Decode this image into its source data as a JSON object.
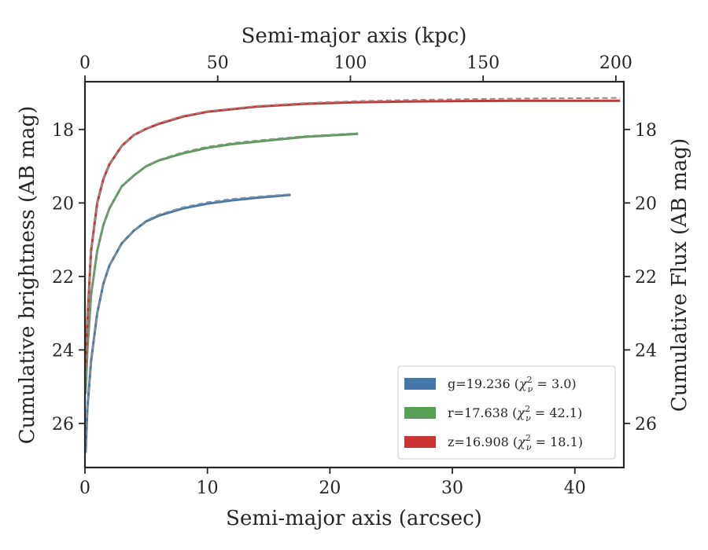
{
  "chart_data": {
    "type": "line",
    "xlabel_bottom": "Semi-major axis (arcsec)",
    "xlabel_top": "Semi-major axis (kpc)",
    "ylabel_left": "Cumulative brightness (AB mag)",
    "ylabel_right": "Cumulative Flux (AB mag)",
    "xlim": [
      0,
      44
    ],
    "ylim": [
      27.2,
      16.7
    ],
    "y_inverted": true,
    "top_xlim": [
      0,
      203
    ],
    "x_ticks": [
      0,
      10,
      20,
      30,
      40
    ],
    "x_tick_labels": [
      "0",
      "10",
      "20",
      "30",
      "40"
    ],
    "top_ticks": [
      0,
      50,
      100,
      150,
      200
    ],
    "top_tick_labels": [
      "0",
      "50",
      "100",
      "150",
      "200"
    ],
    "y_ticks": [
      18,
      20,
      22,
      24,
      26
    ],
    "y_tick_labels": [
      "18",
      "20",
      "22",
      "24",
      "26"
    ],
    "grid": false,
    "legend_position": "lower-right",
    "series": [
      {
        "name": "g=19.236 (χ²ᵥ = 3.0)",
        "legend_main": "g=19.236 (",
        "legend_chi_sup": "2",
        "legend_chi_sub": "ν",
        "legend_tail": " = 3.0)",
        "color": "#4477aa",
        "x": [
          0.05,
          0.2,
          0.5,
          1,
          1.5,
          2,
          3,
          4,
          5,
          6,
          8,
          10,
          12,
          14,
          16.8
        ],
        "y": [
          26.8,
          25.6,
          24.3,
          23.0,
          22.2,
          21.7,
          21.1,
          20.75,
          20.5,
          20.35,
          20.15,
          20.02,
          19.93,
          19.86,
          19.78
        ],
        "model_x": [
          0.05,
          0.2,
          0.5,
          1,
          1.5,
          2,
          3,
          4,
          5,
          6,
          8,
          10,
          12,
          14,
          16.8
        ],
        "model_y": [
          26.8,
          25.6,
          24.3,
          23.0,
          22.2,
          21.7,
          21.1,
          20.74,
          20.48,
          20.32,
          20.12,
          19.98,
          19.89,
          19.83,
          19.76
        ]
      },
      {
        "name": "r=17.638 (χ²ᵥ = 42.1)",
        "legend_main": "r=17.638 (",
        "legend_chi_sup": "2",
        "legend_chi_sub": "ν",
        "legend_tail": " = 42.1)",
        "color": "#55a055",
        "x": [
          0.05,
          0.2,
          0.5,
          1,
          1.5,
          2,
          3,
          4,
          5,
          6,
          8,
          10,
          12,
          15,
          18,
          22.3
        ],
        "y": [
          25.2,
          24.0,
          22.5,
          21.3,
          20.6,
          20.15,
          19.55,
          19.25,
          19.0,
          18.85,
          18.65,
          18.5,
          18.4,
          18.3,
          18.2,
          18.12
        ],
        "model_x": [
          0.05,
          0.2,
          0.5,
          1,
          1.5,
          2,
          3,
          4,
          5,
          6,
          8,
          10,
          12,
          15,
          18,
          22.3
        ],
        "model_y": [
          25.2,
          24.0,
          22.5,
          21.3,
          20.6,
          20.15,
          19.55,
          19.24,
          18.99,
          18.83,
          18.62,
          18.47,
          18.37,
          18.27,
          18.18,
          18.1
        ]
      },
      {
        "name": "z=16.908 (χ²ᵥ = 18.1)",
        "legend_main": "z=16.908 (",
        "legend_chi_sup": "2",
        "legend_chi_sub": "ν",
        "legend_tail": " = 18.1)",
        "color": "#cc3333",
        "x": [
          0.05,
          0.2,
          0.5,
          1,
          1.5,
          2,
          3,
          4,
          5,
          6,
          8,
          10,
          14,
          18,
          22,
          26,
          30,
          35,
          40,
          43.7
        ],
        "y": [
          24.5,
          23.2,
          21.3,
          20.0,
          19.35,
          18.95,
          18.45,
          18.15,
          17.98,
          17.85,
          17.65,
          17.52,
          17.38,
          17.3,
          17.26,
          17.24,
          17.23,
          17.22,
          17.22,
          17.22
        ],
        "model_x": [
          0.05,
          0.2,
          0.5,
          1,
          1.5,
          2,
          3,
          4,
          5,
          6,
          8,
          10,
          14,
          18,
          22,
          26,
          30,
          35,
          40,
          43.7
        ],
        "model_y": [
          24.5,
          23.2,
          21.3,
          20.0,
          19.35,
          18.95,
          18.45,
          18.15,
          17.97,
          17.83,
          17.63,
          17.5,
          17.36,
          17.28,
          17.23,
          17.2,
          17.18,
          17.16,
          17.15,
          17.14
        ]
      }
    ]
  }
}
